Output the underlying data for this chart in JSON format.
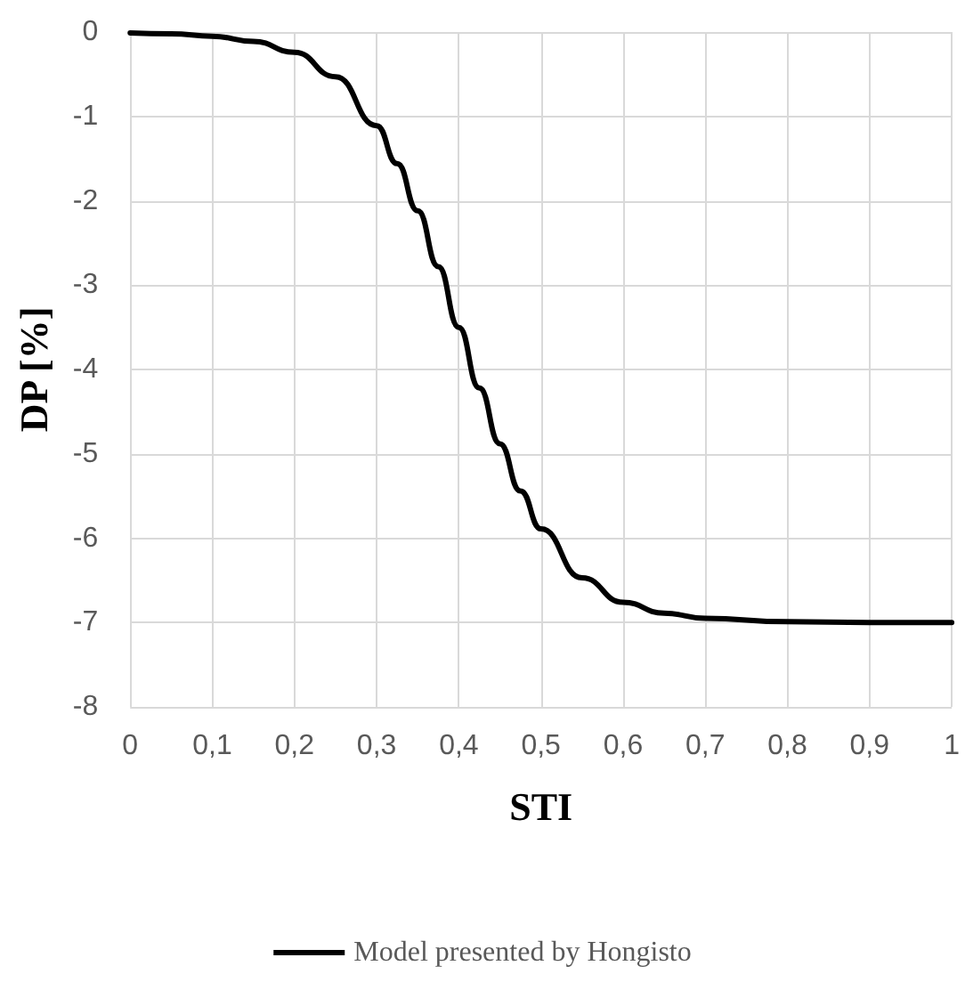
{
  "chart_data": {
    "type": "line",
    "xlabel": "STI",
    "ylabel": "DP [%]",
    "series": [
      {
        "name": "Model presented by Hongisto",
        "color": "#000000",
        "x": [
          0,
          0.05,
          0.1,
          0.15,
          0.2,
          0.25,
          0.3,
          0.325,
          0.35,
          0.375,
          0.4,
          0.425,
          0.45,
          0.475,
          0.5,
          0.55,
          0.6,
          0.65,
          0.7,
          0.8,
          0.9,
          1
        ],
        "values": [
          -0.01,
          -0.02,
          -0.05,
          -0.11,
          -0.24,
          -0.53,
          -1.11,
          -1.56,
          -2.12,
          -2.78,
          -3.5,
          -4.22,
          -4.88,
          -5.44,
          -5.89,
          -6.47,
          -6.76,
          -6.89,
          -6.95,
          -6.99,
          -7.0,
          -7.0
        ]
      }
    ],
    "xlim": [
      0,
      1
    ],
    "xticks": [
      0,
      {
        "value": 0.1,
        "label": "0,1"
      },
      {
        "value": 0.2,
        "label": "0,2"
      },
      {
        "value": 0.3,
        "label": "0,3"
      },
      {
        "value": 0.4,
        "label": "0,4"
      },
      {
        "value": 0.5,
        "label": "0,5"
      },
      {
        "value": 0.6,
        "label": "0,6"
      },
      {
        "value": 0.7,
        "label": "0,7"
      },
      {
        "value": 0.8,
        "label": "0,8"
      },
      {
        "value": 0.9,
        "label": "0,9"
      },
      1
    ],
    "ylim": [
      -8,
      0
    ],
    "yticks": [
      -8,
      -7,
      -6,
      -5,
      -4,
      -3,
      -2,
      -1,
      0
    ],
    "grid": true,
    "legend": "bottom",
    "marker": "none",
    "line_style": "solid"
  }
}
